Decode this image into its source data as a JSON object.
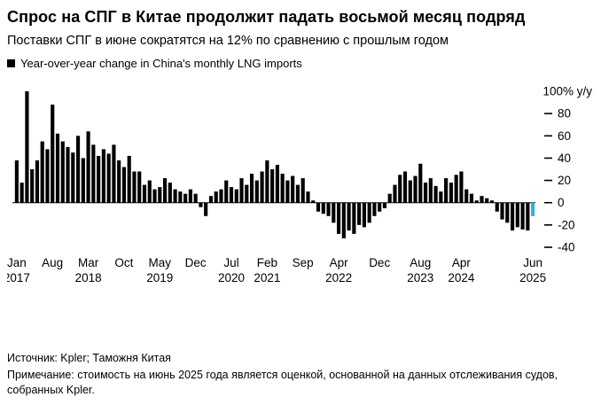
{
  "header": {
    "title": "Спрос на СПГ в Китае продолжит падать восьмой месяц подряд",
    "subtitle": "Поставки СПГ в июне сократятся на 12% по сравнению с прошлым годом"
  },
  "legend": {
    "label": "Year-over-year change in China's monthly LNG imports",
    "marker_color": "#000000"
  },
  "chart_data": {
    "type": "bar",
    "title": "Year-over-year change in China's monthly LNG imports",
    "unit": "% y/y",
    "x_start": "2017-01",
    "x_end": "2025-06",
    "ylim": [
      -40,
      100
    ],
    "yticks": [
      100,
      80,
      60,
      40,
      20,
      0,
      -20,
      -40
    ],
    "ytick_top_label": "100% y/y",
    "grid": false,
    "legend_position": "top-left",
    "bar_color": "#000000",
    "highlight_color": "#35ace2",
    "highlight_index": 101,
    "highlight_meaning": "Jun 2025 estimate (-12%)",
    "values": [
      38,
      18,
      100,
      30,
      38,
      55,
      48,
      88,
      62,
      55,
      50,
      45,
      60,
      40,
      64,
      52,
      42,
      48,
      44,
      52,
      38,
      32,
      42,
      28,
      28,
      16,
      20,
      12,
      14,
      22,
      18,
      12,
      10,
      8,
      12,
      8,
      -4,
      -12,
      6,
      10,
      12,
      20,
      14,
      12,
      22,
      16,
      26,
      20,
      28,
      38,
      30,
      34,
      26,
      20,
      24,
      16,
      22,
      10,
      2,
      -8,
      -10,
      -12,
      -18,
      -28,
      -32,
      -25,
      -28,
      -20,
      -22,
      -18,
      -12,
      -8,
      -5,
      8,
      16,
      25,
      28,
      20,
      24,
      35,
      18,
      22,
      15,
      10,
      22,
      18,
      25,
      28,
      12,
      8,
      2,
      6,
      4,
      2,
      -8,
      -15,
      -18,
      -25,
      -22,
      -24,
      -25,
      -12
    ],
    "xticks": [
      {
        "index": 0,
        "line1": "Jan",
        "line2": "2017"
      },
      {
        "index": 7,
        "line1": "Aug",
        "line2": ""
      },
      {
        "index": 14,
        "line1": "Mar",
        "line2": "2018"
      },
      {
        "index": 21,
        "line1": "Oct",
        "line2": ""
      },
      {
        "index": 28,
        "line1": "May",
        "line2": "2019"
      },
      {
        "index": 35,
        "line1": "Dec",
        "line2": ""
      },
      {
        "index": 42,
        "line1": "Jul",
        "line2": "2020"
      },
      {
        "index": 49,
        "line1": "Feb",
        "line2": "2021"
      },
      {
        "index": 56,
        "line1": "Sep",
        "line2": ""
      },
      {
        "index": 63,
        "line1": "Apr",
        "line2": "2022"
      },
      {
        "index": 71,
        "line1": "Dec",
        "line2": ""
      },
      {
        "index": 79,
        "line1": "Aug",
        "line2": "2023"
      },
      {
        "index": 87,
        "line1": "Apr",
        "line2": "2024"
      },
      {
        "index": 101,
        "line1": "Jun",
        "line2": "2025"
      }
    ]
  },
  "footer": {
    "source": "Источник: Kpler; Таможня Китая",
    "note": "Примечание: стоимость на июнь 2025 года является оценкой, основанной на данных отслеживания судов, собранных Kpler."
  }
}
